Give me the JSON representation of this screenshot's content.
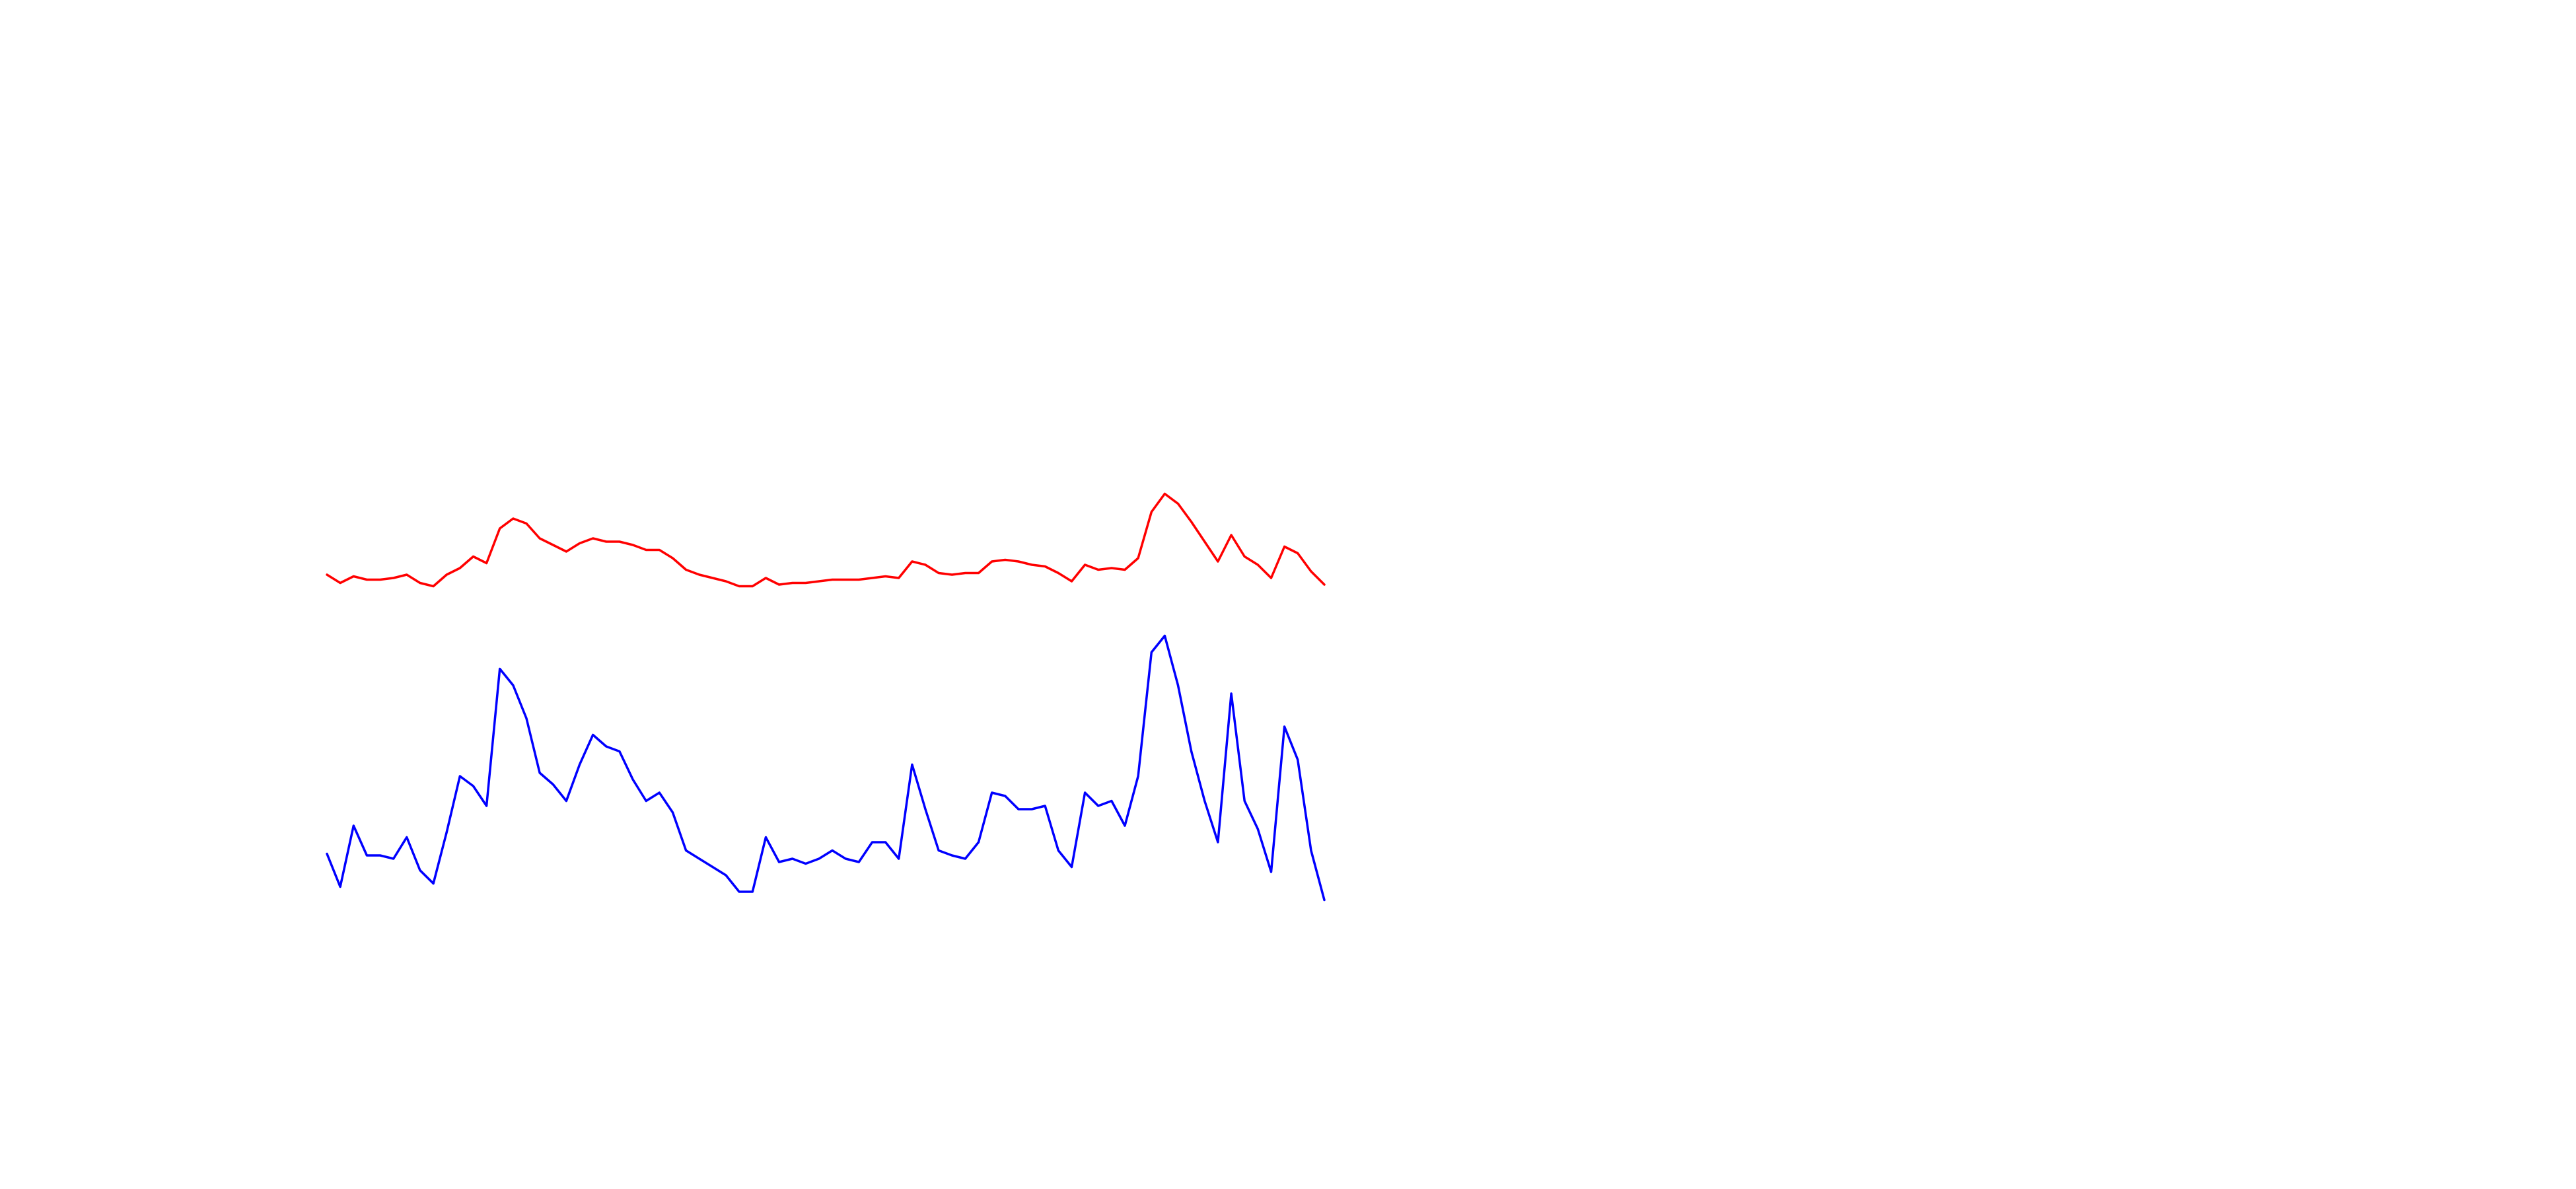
{
  "chart_data": {
    "type": "line",
    "categories": [
      null,
      null,
      null,
      null,
      null,
      null,
      null,
      null,
      null,
      null,
      null,
      null,
      null,
      null,
      null,
      null,
      null,
      null,
      null,
      null,
      null,
      null,
      null,
      null,
      null,
      null,
      null,
      null,
      null,
      null,
      null,
      null,
      null,
      null,
      null,
      null,
      null,
      null,
      null,
      null,
      null,
      null,
      null,
      null,
      null,
      null,
      null,
      null,
      null,
      null,
      null,
      null,
      null,
      null,
      null,
      null,
      null,
      null,
      null,
      null,
      null,
      null,
      null,
      null,
      null,
      null,
      null,
      null,
      null,
      null,
      null,
      null,
      null,
      null,
      null,
      null
    ],
    "series": [
      {
        "color": "#ff0000",
        "values": [
          252,
          247,
          251,
          249,
          249,
          250,
          252,
          247,
          245,
          252,
          256,
          263,
          259,
          280,
          286,
          283,
          274,
          270,
          266,
          271,
          274,
          272,
          272,
          270,
          267,
          267,
          262,
          255,
          252,
          250,
          248,
          245,
          245,
          250,
          246,
          247,
          247,
          248,
          249,
          249,
          249,
          250,
          251,
          250,
          260,
          258,
          253,
          252,
          253,
          253,
          260,
          261,
          260,
          258,
          257,
          253,
          248,
          258,
          255,
          256,
          255,
          262,
          290,
          301,
          295,
          284,
          272,
          260,
          276,
          263,
          258,
          250,
          269,
          265,
          254,
          246
        ]
      },
      {
        "color": "#0000ff",
        "values": [
          83,
          63,
          100,
          82,
          82,
          80,
          93,
          73,
          65,
          96,
          130,
          124,
          112,
          195,
          185,
          165,
          132,
          125,
          115,
          137,
          155,
          148,
          145,
          128,
          115,
          120,
          108,
          85,
          80,
          75,
          70,
          60,
          60,
          93,
          78,
          80,
          77,
          80,
          85,
          80,
          78,
          90,
          90,
          80,
          137,
          110,
          85,
          82,
          80,
          90,
          120,
          118,
          110,
          110,
          112,
          85,
          75,
          120,
          112,
          115,
          100,
          130,
          205,
          215,
          185,
          145,
          115,
          90,
          180,
          115,
          98,
          72,
          160,
          140,
          85,
          55
        ]
      }
    ],
    "ylim": [
      0,
      600
    ],
    "grid": false
  }
}
